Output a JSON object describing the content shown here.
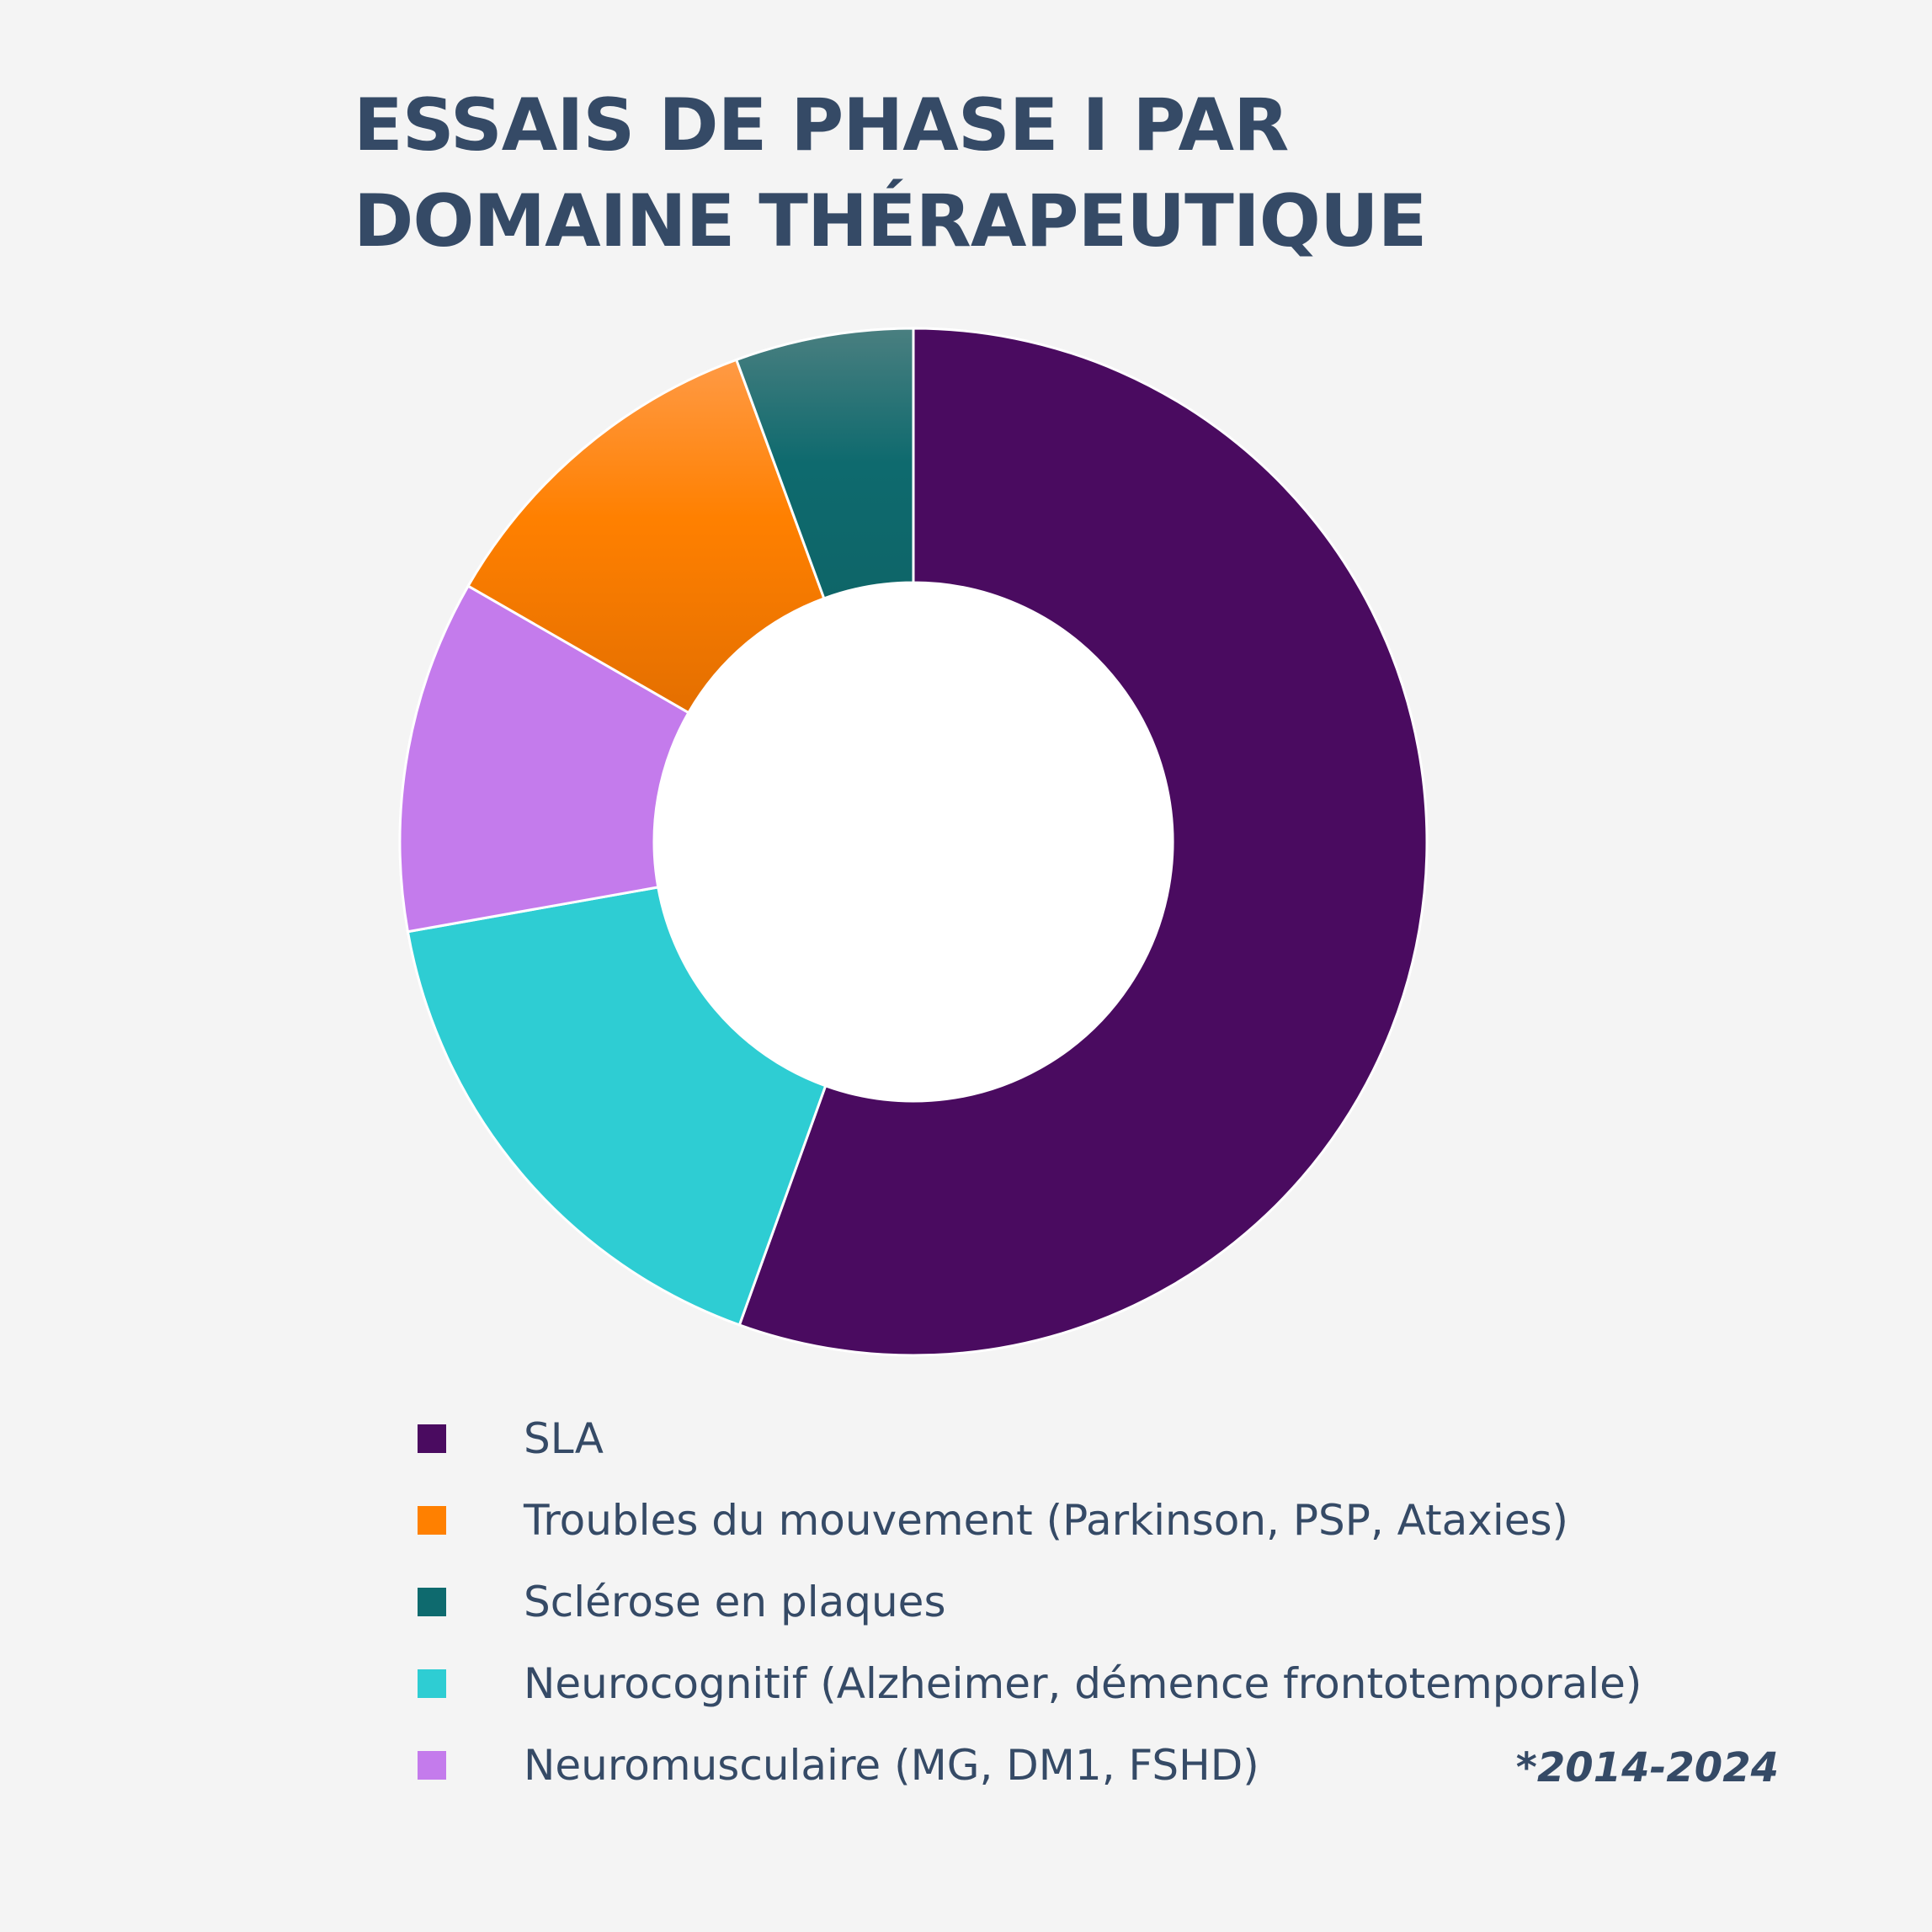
{
  "chart_data": {
    "type": "pie",
    "variant": "donut",
    "title": "ESSAIS DE PHASE I PAR DOMAINE THÉRAPEUTIQUE",
    "title_lines": [
      "ESSAIS DE PHASE I PAR",
      "DOMAINE THÉRAPEUTIQUE"
    ],
    "categories": [
      "SLA",
      "Neurocognitif (Alzheimer, démence frontotemporale)",
      "Neuromusculaire (MG, DM1, FSHD)",
      "Troubles du mouvement (Parkinson, PSP, Ataxies)",
      "Sclérose en plaques"
    ],
    "values": [
      55.5,
      16.7,
      11.1,
      11.1,
      5.6
    ],
    "colors": [
      "#4a0b60",
      "#2ecdd3",
      "#c47bec",
      "#ff8000",
      "#0e6a6e"
    ],
    "legend": {
      "position": "bottom",
      "order": [
        {
          "label": "SLA",
          "color": "#4a0b60"
        },
        {
          "label": "Troubles du mouvement (Parkinson, PSP, Ataxies)",
          "color": "#ff8000"
        },
        {
          "label": "Sclérose en plaques",
          "color": "#0e6a6e"
        },
        {
          "label": "Neurocognitif (Alzheimer, démence frontotemporale)",
          "color": "#2ecdd3"
        },
        {
          "label": "Neuromusculaire (MG, DM1, FSHD)",
          "color": "#c47bec"
        }
      ]
    },
    "note": "*2014-2024"
  }
}
